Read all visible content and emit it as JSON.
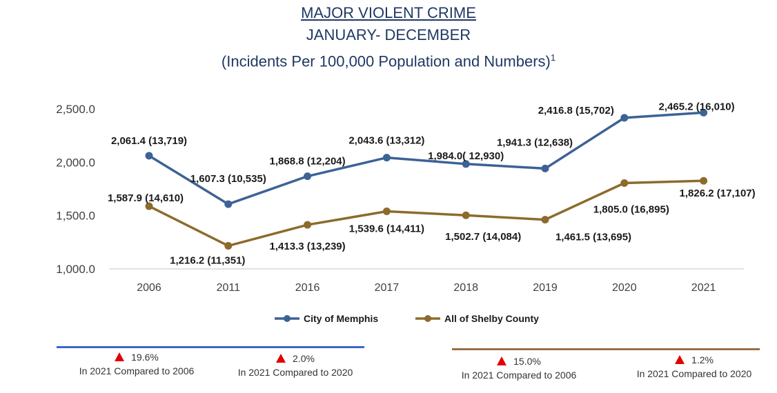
{
  "chart_data": {
    "type": "line",
    "title": "MAJOR VIOLENT CRIME",
    "subtitle": "JANUARY- DECEMBER",
    "subtitle2": "(Incidents Per 100,000 Population and Numbers)",
    "footnote_mark": "1",
    "categories": [
      "2006",
      "2011",
      "2016",
      "2017",
      "2018",
      "2019",
      "2020",
      "2021"
    ],
    "ylim": [
      1000,
      2500
    ],
    "yticks": [
      "1,000.0",
      "1,500.0",
      "2,000.0",
      "2,500.0"
    ],
    "grid": false,
    "legend_position": "bottom",
    "series": [
      {
        "name": "City of Memphis",
        "color": "#3c6296",
        "values": [
          2061.4,
          1607.3,
          1868.8,
          2043.6,
          1984.0,
          1941.3,
          2416.8,
          2465.2
        ],
        "labels": [
          "2,061.4 (13,719)",
          "1,607.3 (10,535)",
          "1,868.8 (12,204)",
          "2,043.6 (13,312)",
          "1,984.0( 12,930)",
          "1,941.3 (12,638)",
          "2,416.8 (15,702)",
          "2,465.2  (16,010)"
        ]
      },
      {
        "name": "All of Shelby County",
        "color": "#8c6b2b",
        "values": [
          1587.9,
          1216.2,
          1413.3,
          1539.6,
          1502.7,
          1461.5,
          1805.0,
          1826.2
        ],
        "labels": [
          "1,587.9 (14,610)",
          "1,216.2 (11,351)",
          "1,413.3 (13,239)",
          "1,539.6 (14,411)",
          "1,502.7 (14,084)",
          "1,461.5 (13,695)",
          "1,805.0 (16,895)",
          "1,826.2 (17,107)"
        ]
      }
    ]
  },
  "summary": {
    "memphis": [
      {
        "pct": "19.6%",
        "text": "In 2021 Compared to 2006",
        "direction": "up"
      },
      {
        "pct": "2.0%",
        "text": "In 2021 Compared to 2020",
        "direction": "up"
      }
    ],
    "shelby": [
      {
        "pct": "15.0%",
        "text": "In 2021 Compared to 2006",
        "direction": "up"
      },
      {
        "pct": "1.2%",
        "text": "In 2021 Compared to 2020",
        "direction": "up"
      }
    ],
    "up_color": "#e00000"
  }
}
